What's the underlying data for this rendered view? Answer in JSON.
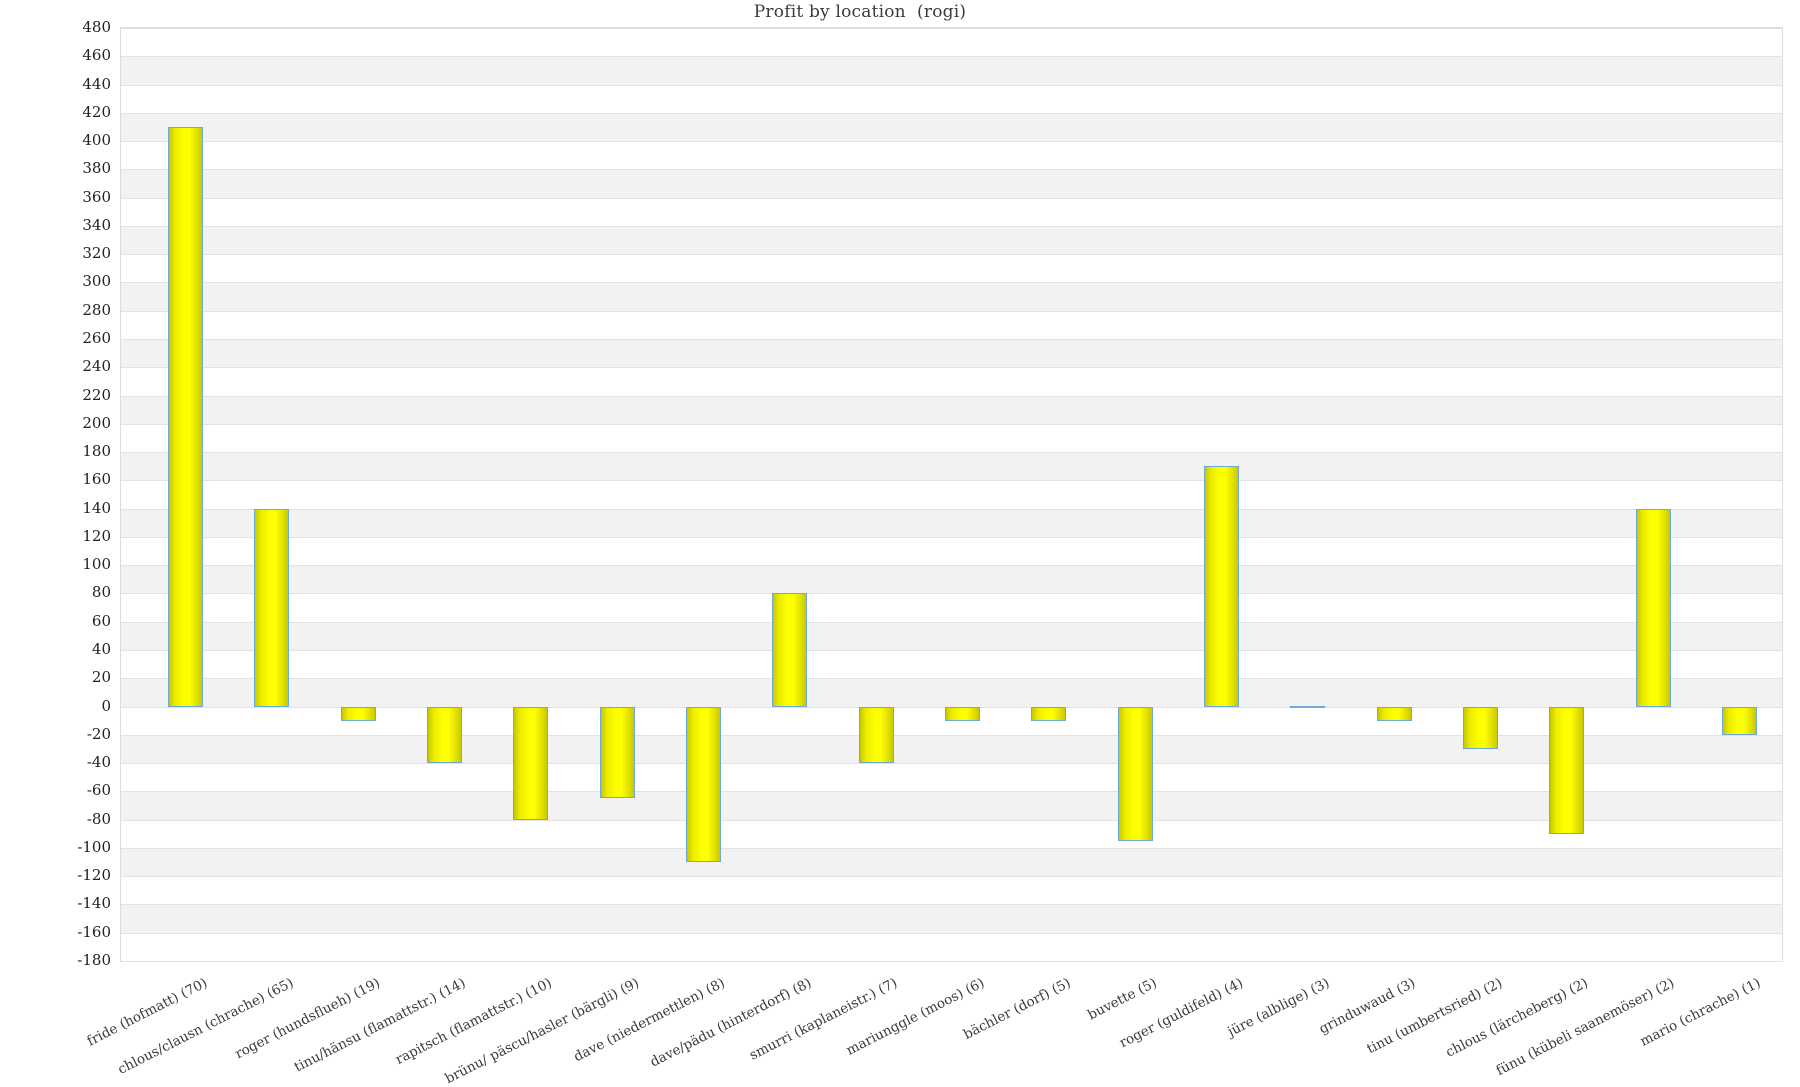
{
  "chart_data": {
    "type": "bar",
    "title": "Profit by location  (rogi)",
    "categories": [
      "fride (hofmatt) (70)",
      "chlous/clausn (chrache) (65)",
      "roger (hundsflueh) (19)",
      "tinu/hänsu (flamattstr.) (14)",
      "rapitsch (flamattstr.) (10)",
      "brünu/ päscu/hasler (bärgli) (9)",
      "dave (niedermettlen) (8)",
      "dave/pädu (hinterdorf) (8)",
      "smurri (kaplaneistr.) (7)",
      "mariunggle (moos) (6)",
      "bächler (dorf) (5)",
      "buvette (5)",
      "roger (guldifeld) (4)",
      "jüre (alblige) (3)",
      "grinduwaud (3)",
      "tinu (umbertsried) (2)",
      "chlous (lärcheberg) (2)",
      "fünu (kübeli saanemöser) (2)",
      "mario (chrache) (1)"
    ],
    "values": [
      410,
      140,
      -10,
      -40,
      -80,
      -65,
      -110,
      80,
      -40,
      -10,
      -10,
      -95,
      170,
      0,
      -10,
      -30,
      -90,
      140,
      -20
    ],
    "xlabel": "",
    "ylabel": "",
    "ylim": [
      -180,
      480
    ],
    "ytick_step": 20,
    "grid": true,
    "legend_position": "none",
    "style": {
      "bar_fill_center": "#ffff00",
      "bar_fill_edge": "#c6c600",
      "bar_border": "#6fa8dc",
      "band_gray": "#f2f2f2",
      "gridline": "#e2e2e2",
      "plot_border": "#dcdcdc",
      "title_color": "#3b3b3b",
      "axis_text_color": "#222222",
      "category_text_color": "#3a3a3a"
    }
  }
}
